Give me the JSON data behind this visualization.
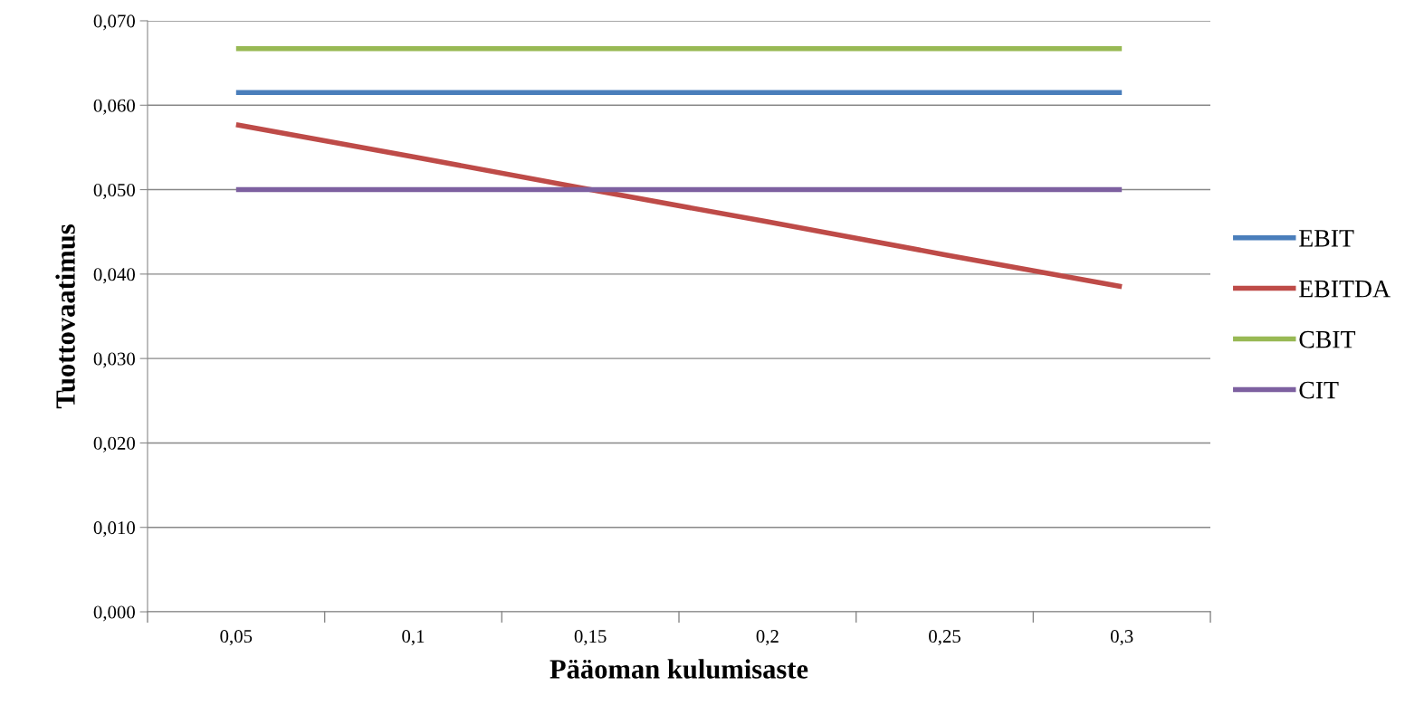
{
  "chart_data": {
    "type": "line",
    "xlabel": "Pääoman kulumisaste",
    "ylabel": "Tuottovaatimus",
    "categories": [
      "0,05",
      "0,1",
      "0,15",
      "0,2",
      "0,25",
      "0,3"
    ],
    "series": [
      {
        "name": "EBIT",
        "color": "#4a7ebb",
        "values": [
          0.0615,
          0.0615,
          0.0615,
          0.0615,
          0.0615,
          0.0615
        ]
      },
      {
        "name": "EBITDA",
        "color": "#be4b48",
        "values": [
          0.0577,
          0.0539,
          0.05,
          0.0462,
          0.0423,
          0.0385
        ]
      },
      {
        "name": "CBIT",
        "color": "#98b954",
        "values": [
          0.0667,
          0.0667,
          0.0667,
          0.0667,
          0.0667,
          0.0667
        ]
      },
      {
        "name": "CIT",
        "color": "#7d60a0",
        "values": [
          0.05,
          0.05,
          0.05,
          0.05,
          0.05,
          0.05
        ]
      }
    ],
    "ylim": [
      0,
      0.07
    ],
    "yticks": [
      {
        "value": 0,
        "label": "0,000"
      },
      {
        "value": 0.01,
        "label": "0,010"
      },
      {
        "value": 0.02,
        "label": "0,020"
      },
      {
        "value": 0.03,
        "label": "0,030"
      },
      {
        "value": 0.04,
        "label": "0,040"
      },
      {
        "value": 0.05,
        "label": "0,050"
      },
      {
        "value": 0.06,
        "label": "0,060"
      },
      {
        "value": 0.07,
        "label": "0,070"
      }
    ],
    "grid": "y",
    "legend": "right",
    "marker": "none",
    "line_style": "solid"
  }
}
